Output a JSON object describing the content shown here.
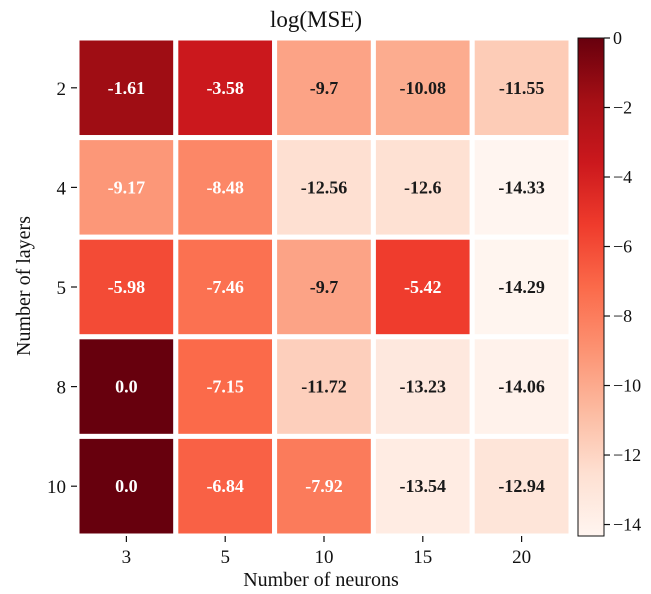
{
  "chart_data": {
    "type": "heatmap",
    "title": "log(MSE)",
    "xlabel": "Number of neurons",
    "ylabel": "Number of layers",
    "x_categories": [
      "3",
      "5",
      "10",
      "15",
      "20"
    ],
    "y_categories": [
      "2",
      "4",
      "5",
      "8",
      "10"
    ],
    "values": [
      [
        -1.61,
        -3.58,
        -9.7,
        -10.08,
        -11.55
      ],
      [
        -9.17,
        -8.48,
        -12.56,
        -12.6,
        -14.33
      ],
      [
        -5.98,
        -7.46,
        -9.7,
        -5.42,
        -14.29
      ],
      [
        0.0,
        -7.15,
        -11.72,
        -13.23,
        -14.06
      ],
      [
        0.0,
        -6.84,
        -7.92,
        -13.54,
        -12.94
      ]
    ],
    "cell_labels": [
      [
        "-1.61",
        "-3.58",
        "-9.7",
        "-10.08",
        "-11.55"
      ],
      [
        "-9.17",
        "-8.48",
        "-12.56",
        "-12.6",
        "-14.33"
      ],
      [
        "-5.98",
        "-7.46",
        "-9.7",
        "-5.42",
        "-14.29"
      ],
      [
        "0.0",
        "-7.15",
        "-11.72",
        "-13.23",
        "-14.06"
      ],
      [
        "0.0",
        "-6.84",
        "-7.92",
        "-13.54",
        "-12.94"
      ]
    ],
    "colormap": "Reds",
    "color_range": [
      -14.33,
      0
    ],
    "colorbar": {
      "ticks": [
        0,
        -2,
        -4,
        -6,
        -8,
        -10,
        -12,
        -14
      ],
      "tick_labels": [
        "0",
        "−2",
        "−4",
        "−6",
        "−8",
        "−10",
        "−12",
        "−14"
      ],
      "placement": "right"
    },
    "colors": {
      "cell_border": "#ffffff",
      "text_light": "#ffffff",
      "text_dark": "#1a1a1a",
      "reds_stops": [
        "#fff5f0",
        "#fee0d2",
        "#fcbba1",
        "#fc9272",
        "#fb6a4a",
        "#ef3b2c",
        "#cb181d",
        "#a50f15",
        "#67000d"
      ]
    }
  }
}
